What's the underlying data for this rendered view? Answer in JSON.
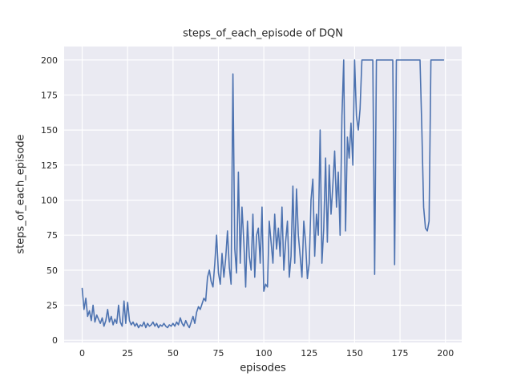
{
  "chart_data": {
    "type": "line",
    "title": "steps_of_each_episode of DQN",
    "xlabel": "episodes",
    "ylabel": "steps_of_each_episode",
    "x_ticks": [
      0,
      25,
      50,
      75,
      100,
      125,
      150,
      175,
      200
    ],
    "y_ticks": [
      0,
      25,
      50,
      75,
      100,
      125,
      150,
      175,
      200
    ],
    "xlim": [
      -9.95,
      208.95
    ],
    "ylim": [
      -1.6,
      209.6
    ],
    "grid": true,
    "legend": "none",
    "plot_bg_color": "#eaeaf2",
    "grid_color": "#ffffff",
    "line_color": "#4c72b0",
    "text_color": "#262626",
    "series": [
      {
        "name": "steps_of_each_episode",
        "x_is_index": true,
        "values": [
          37,
          22,
          30,
          17,
          21,
          14,
          25,
          13,
          18,
          15,
          12,
          16,
          10,
          14,
          22,
          13,
          17,
          11,
          15,
          12,
          25,
          13,
          10,
          28,
          12,
          27,
          14,
          11,
          13,
          10,
          12,
          9,
          11,
          10,
          13,
          9,
          12,
          10,
          11,
          13,
          10,
          12,
          9,
          11,
          10,
          12,
          10,
          9,
          11,
          10,
          12,
          10,
          13,
          11,
          16,
          12,
          10,
          14,
          11,
          9,
          13,
          17,
          12,
          20,
          24,
          22,
          26,
          30,
          28,
          45,
          50,
          42,
          38,
          55,
          75,
          48,
          40,
          62,
          45,
          58,
          78,
          52,
          40,
          190,
          65,
          48,
          120,
          55,
          95,
          70,
          38,
          85,
          60,
          50,
          90,
          45,
          75,
          80,
          55,
          95,
          35,
          40,
          38,
          85,
          70,
          55,
          90,
          65,
          80,
          60,
          95,
          50,
          70,
          85,
          45,
          60,
          110,
          55,
          108,
          75,
          60,
          45,
          85,
          70,
          44,
          55,
          100,
          115,
          60,
          90,
          75,
          150,
          55,
          80,
          130,
          70,
          125,
          90,
          110,
          135,
          95,
          120,
          75,
          160,
          200,
          78,
          145,
          130,
          155,
          125,
          200,
          160,
          150,
          165,
          200,
          200,
          200,
          200,
          200,
          200,
          200,
          47,
          200,
          200,
          200,
          200,
          200,
          200,
          200,
          200,
          200,
          200,
          54,
          200,
          200,
          200,
          200,
          200,
          200,
          200,
          200,
          200,
          200,
          200,
          200,
          200,
          200,
          150,
          95,
          80,
          78,
          85,
          200,
          200,
          200,
          200,
          200,
          200,
          200,
          200
        ]
      }
    ]
  }
}
